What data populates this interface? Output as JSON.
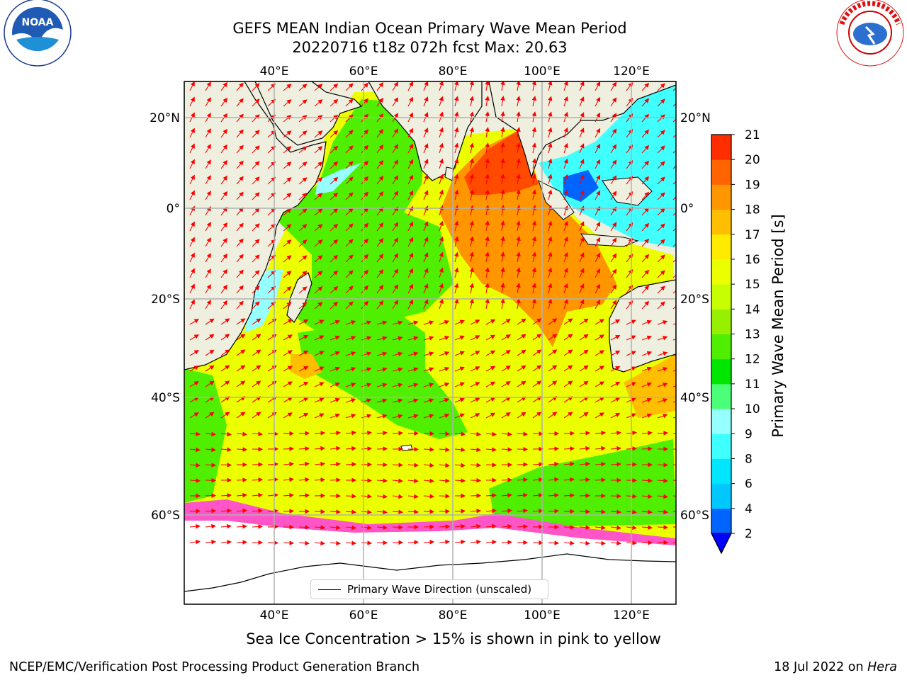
{
  "header": {
    "title_line1": "GEFS MEAN Indian Ocean Primary Wave Mean Period",
    "title_line2": "20220716 t18z 072h fcst   Max: 20.63"
  },
  "logos": {
    "left": {
      "name": "noaa-logo",
      "text": "NOAA"
    },
    "right": {
      "name": "nws-logo",
      "text": "NATIONAL WEATHER SERVICE"
    }
  },
  "map": {
    "lon_ticks": [
      "40°E",
      "60°E",
      "80°E",
      "100°E",
      "120°E"
    ],
    "lat_ticks": [
      "20°N",
      "0°",
      "20°S",
      "40°S",
      "60°S"
    ],
    "land_color": "#efefdf",
    "ice_note_colors": [
      "#ff55c8",
      "#ffffff"
    ]
  },
  "colorbar": {
    "label": "Primary Wave Mean Period [s]",
    "ticks": [
      "2",
      "4",
      "6",
      "8",
      "9",
      "10",
      "11",
      "12",
      "13",
      "14",
      "15",
      "16",
      "17",
      "18",
      "19",
      "20",
      "21"
    ],
    "colors": [
      "#0064ff",
      "#00c8ff",
      "#00e6ff",
      "#40ffff",
      "#96ffff",
      "#4cff78",
      "#00e600",
      "#50ee00",
      "#96f000",
      "#c8ff00",
      "#ebff00",
      "#ffeb00",
      "#ffbe00",
      "#ff9600",
      "#ff6400",
      "#ff2d00",
      "#ff0000"
    ],
    "under_color": "#0000ff"
  },
  "legend": {
    "label": "Primary Wave Direction (unscaled)"
  },
  "subtitle": "Sea Ice Concentration > 15% is shown in pink to yellow",
  "footer": {
    "left": "NCEP/EMC/Verification Post Processing Product Generation Branch",
    "right_date": "18 Jul 2022 on ",
    "right_host": "Hera"
  }
}
